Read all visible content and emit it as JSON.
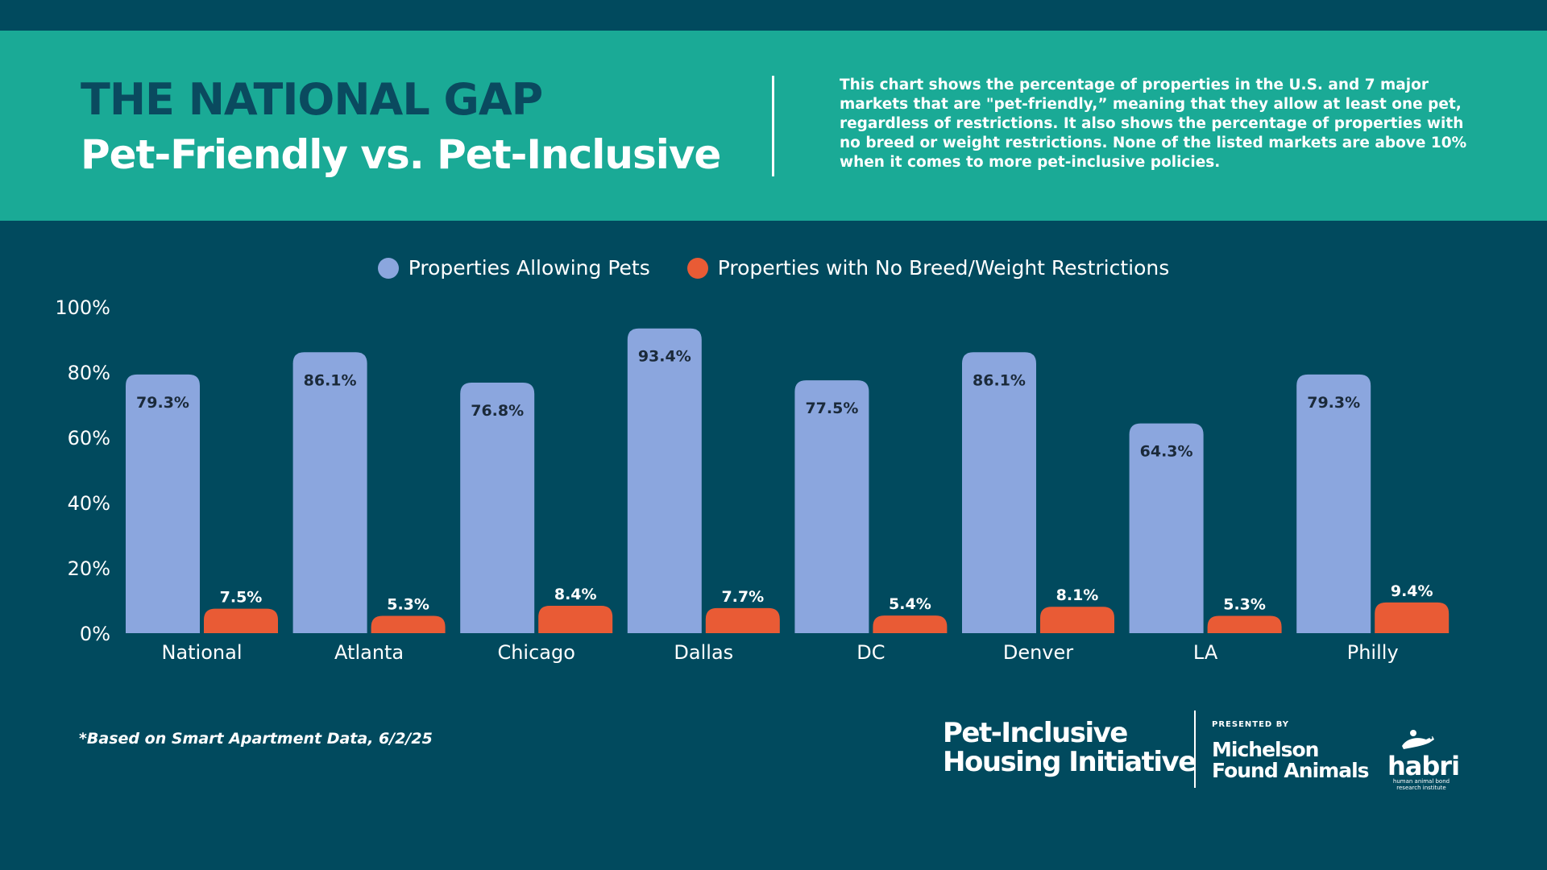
{
  "header": {
    "title": "THE NATIONAL GAP",
    "subtitle": "Pet-Friendly vs. Pet-Inclusive",
    "description": "This chart shows the percentage of properties in the U.S. and 7 major markets that are \"pet-friendly,” meaning that they allow at least one pet, regardless of restrictions. It also shows the percentage of properties with no breed or weight restrictions. None of the listed markets are above 10% when it comes to more pet-inclusive policies."
  },
  "legend": [
    {
      "label": "Properties Allowing Pets",
      "color": "#8ba6de"
    },
    {
      "label": "Properties with No Breed/Weight Restrictions",
      "color": "#e95b35"
    }
  ],
  "chart_data": {
    "type": "bar",
    "categories": [
      "National",
      "Atlanta",
      "Chicago",
      "Dallas",
      "DC",
      "Denver",
      "LA",
      "Philly"
    ],
    "series": [
      {
        "name": "Properties Allowing Pets",
        "values": [
          79.3,
          86.1,
          76.8,
          93.4,
          77.5,
          86.1,
          64.3,
          79.3
        ],
        "color": "#8ba6de"
      },
      {
        "name": "Properties with No Breed/Weight Restrictions",
        "values": [
          7.5,
          5.3,
          8.4,
          7.7,
          5.4,
          8.1,
          5.3,
          9.4
        ],
        "color": "#e95b35"
      }
    ],
    "data_labels": [
      [
        "79.3%",
        "86.1%",
        "76.8%",
        "93.4%",
        "77.5%",
        "86.1%",
        "64.3%",
        "79.3%"
      ],
      [
        "7.5%",
        "5.3%",
        "8.4%",
        "7.7%",
        "5.4%",
        "8.1%",
        "5.3%",
        "9.4%"
      ]
    ],
    "yticks": [
      0,
      20,
      40,
      60,
      80,
      100
    ],
    "ytick_labels": [
      "0%",
      "20%",
      "40%",
      "60%",
      "80%",
      "100%"
    ],
    "ylim": [
      0,
      100
    ],
    "grid": false,
    "legend_position": "top-center"
  },
  "footer": {
    "footnote": "*Based on Smart Apartment Data, 6/2/25",
    "logo_phi_line1": "Pet-Inclusive",
    "logo_phi_line2": "Housing Initiative",
    "presented_by": "PRESENTED BY",
    "logo_mfa_line1": "Michelson",
    "logo_mfa_line2": "Found Animals",
    "habri_name": "habri",
    "habri_sub": "human animal bond research institute"
  },
  "colors": {
    "background": "#014a5e",
    "header": "#1aaa96",
    "title": "#0a4a5f",
    "bar_label_dark": "#1b2a3a"
  }
}
